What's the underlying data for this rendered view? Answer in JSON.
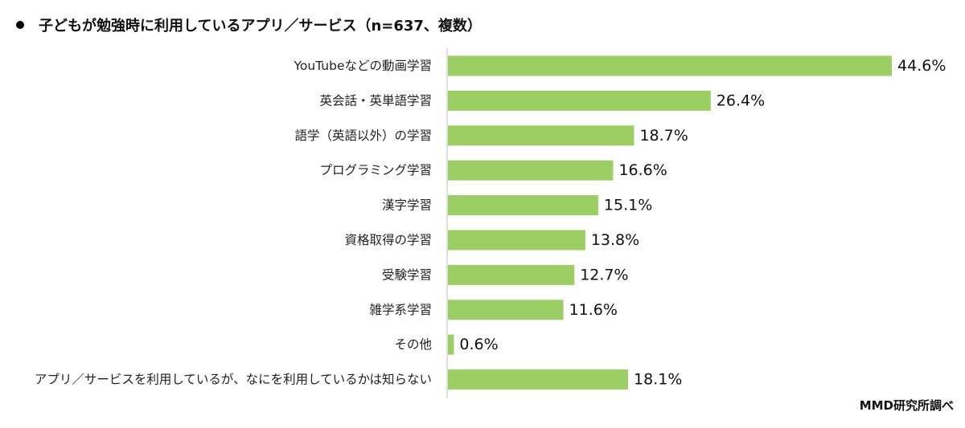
{
  "chart_data": {
    "type": "bar",
    "orientation": "horizontal",
    "title": "子どもが勉強時に利用しているアプリ／サービス（n=637、複数）",
    "categories": [
      "YouTubeなどの動画学習",
      "英会話・英単語学習",
      "語学（英語以外）の学習",
      "プログラミング学習",
      "漢字学習",
      "資格取得の学習",
      "受験学習",
      "雑学系学習",
      "その他",
      "アプリ／サービスを利用しているが、なにを利用しているかは知らない"
    ],
    "values": [
      44.6,
      26.4,
      18.7,
      16.6,
      15.1,
      13.8,
      12.7,
      11.6,
      0.6,
      18.1
    ],
    "value_labels": [
      "44.6%",
      "26.4%",
      "18.7%",
      "16.6%",
      "15.1%",
      "13.8%",
      "12.7%",
      "11.6%",
      "0.6%",
      "18.1%"
    ],
    "xlim": [
      0,
      45
    ],
    "grid": false,
    "legend": "none",
    "bar_color": "#9BCF63"
  },
  "source": "MMD研究所調べ"
}
